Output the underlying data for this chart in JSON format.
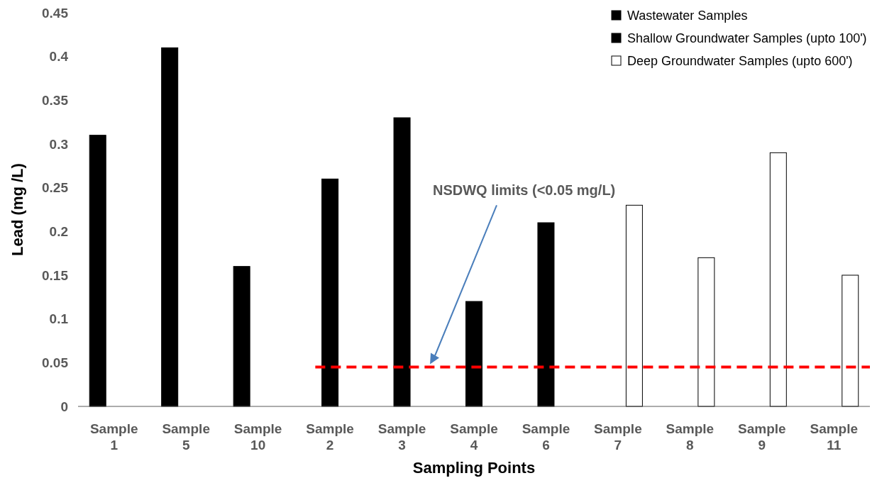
{
  "chart_data": {
    "type": "bar",
    "xlabel": "Sampling Points",
    "ylabel": "Lead (mg /L)",
    "categories": [
      "Sample 1",
      "Sample 5",
      "Sample 10",
      "Sample 2",
      "Sample 3",
      "Sample 4",
      "Sample 6",
      "Sample 7",
      "Sample 8",
      "Sample 9",
      "Sample 11"
    ],
    "series": [
      {
        "name": "Wastewater Samples",
        "color": "#000000",
        "values": [
          0.31,
          0.41,
          0.16,
          null,
          null,
          null,
          null,
          null,
          null,
          null,
          null
        ]
      },
      {
        "name": "Shallow Groundwater Samples (upto 100')",
        "color": "#000000",
        "values": [
          null,
          null,
          null,
          0.26,
          0.33,
          0.12,
          0.21,
          null,
          null,
          null,
          null
        ]
      },
      {
        "name": "Deep Groundwater Samples (upto 600')",
        "color": "#ffffff",
        "values": [
          null,
          null,
          null,
          null,
          null,
          null,
          null,
          0.23,
          0.17,
          0.29,
          0.15
        ]
      }
    ],
    "ylim": [
      0,
      0.45
    ],
    "yticks": [
      0,
      0.05,
      0.1,
      0.15,
      0.2,
      0.25,
      0.3,
      0.35,
      0.4,
      0.45
    ],
    "ref_lines": [
      {
        "axis": "y",
        "value": 0.045,
        "color": "#ff0000",
        "line_style": "dashed"
      }
    ],
    "annotations": [
      "NSDWQ limits (<0.05 mg/L)"
    ],
    "legend": "top right",
    "grid": false
  }
}
